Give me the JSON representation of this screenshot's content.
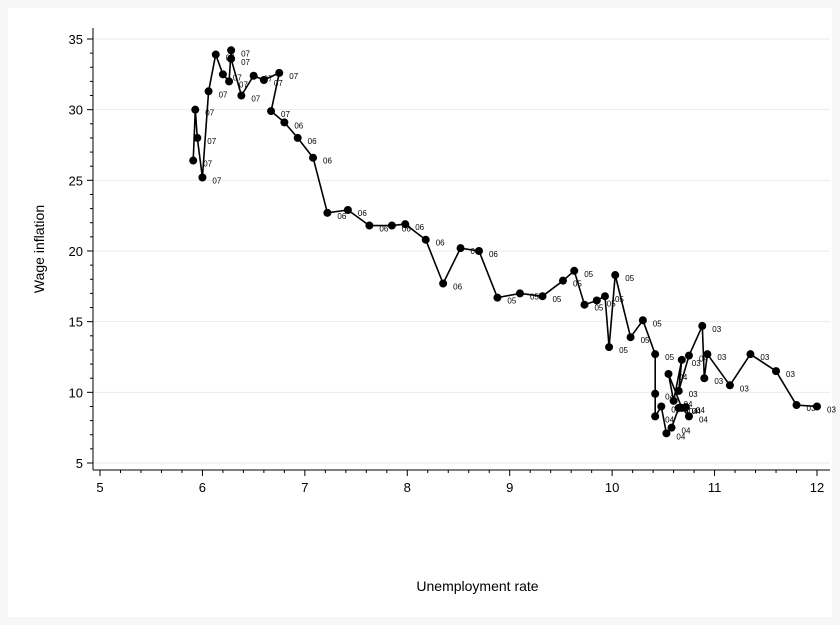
{
  "chart_data": {
    "type": "line",
    "xlabel": "Unemployment rate",
    "ylabel": "Wage inflation",
    "xlim": [
      5,
      12
    ],
    "ylim": [
      5,
      35
    ],
    "xticks": [
      5,
      6,
      7,
      8,
      9,
      10,
      11,
      12
    ],
    "yticks": [
      5,
      10,
      15,
      20,
      25,
      30,
      35
    ],
    "grid": true,
    "series": [
      {
        "color": "#000000",
        "marker": "circle",
        "points": [
          {
            "x": 12.0,
            "y": 9.0,
            "label": "03"
          },
          {
            "x": 11.8,
            "y": 9.1,
            "label": "03"
          },
          {
            "x": 11.6,
            "y": 11.5,
            "label": "03"
          },
          {
            "x": 11.35,
            "y": 12.7,
            "label": "03"
          },
          {
            "x": 11.15,
            "y": 10.5,
            "label": "03"
          },
          {
            "x": 10.93,
            "y": 12.7,
            "label": "03"
          },
          {
            "x": 10.9,
            "y": 11.0,
            "label": "03"
          },
          {
            "x": 10.88,
            "y": 14.7,
            "label": "03"
          },
          {
            "x": 10.75,
            "y": 12.6,
            "label": "04"
          },
          {
            "x": 10.65,
            "y": 10.1,
            "label": "03"
          },
          {
            "x": 10.68,
            "y": 12.3,
            "label": "03"
          },
          {
            "x": 10.6,
            "y": 9.4,
            "label": "04"
          },
          {
            "x": 10.55,
            "y": 11.3,
            "label": "04"
          },
          {
            "x": 10.68,
            "y": 8.9,
            "label": "04"
          },
          {
            "x": 10.75,
            "y": 8.3,
            "label": "04"
          },
          {
            "x": 10.72,
            "y": 8.95,
            "label": "04"
          },
          {
            "x": 10.65,
            "y": 8.9,
            "label": "04"
          },
          {
            "x": 10.58,
            "y": 7.5,
            "label": "04"
          },
          {
            "x": 10.53,
            "y": 7.1,
            "label": "04"
          },
          {
            "x": 10.48,
            "y": 9.0,
            "label": "04"
          },
          {
            "x": 10.42,
            "y": 8.3,
            "label": "04"
          },
          {
            "x": 10.42,
            "y": 9.9,
            "label": "04"
          },
          {
            "x": 10.42,
            "y": 12.7,
            "label": "05"
          },
          {
            "x": 10.3,
            "y": 15.1,
            "label": "05"
          },
          {
            "x": 10.18,
            "y": 13.9,
            "label": "05"
          },
          {
            "x": 10.03,
            "y": 18.3,
            "label": "05"
          },
          {
            "x": 9.97,
            "y": 13.2,
            "label": "05"
          },
          {
            "x": 9.93,
            "y": 16.8,
            "label": "05"
          },
          {
            "x": 9.85,
            "y": 16.5,
            "label": "05"
          },
          {
            "x": 9.73,
            "y": 16.2,
            "label": "05"
          },
          {
            "x": 9.63,
            "y": 18.6,
            "label": "05"
          },
          {
            "x": 9.52,
            "y": 17.9,
            "label": "05"
          },
          {
            "x": 9.32,
            "y": 16.8,
            "label": "05"
          },
          {
            "x": 9.1,
            "y": 17.0,
            "label": "05"
          },
          {
            "x": 8.88,
            "y": 16.7,
            "label": "05"
          },
          {
            "x": 8.7,
            "y": 20.0,
            "label": "06"
          },
          {
            "x": 8.52,
            "y": 20.2,
            "label": "06"
          },
          {
            "x": 8.35,
            "y": 17.7,
            "label": "06"
          },
          {
            "x": 8.18,
            "y": 20.8,
            "label": "06"
          },
          {
            "x": 7.98,
            "y": 21.9,
            "label": "06"
          },
          {
            "x": 7.85,
            "y": 21.8,
            "label": "06"
          },
          {
            "x": 7.63,
            "y": 21.8,
            "label": "06"
          },
          {
            "x": 7.42,
            "y": 22.9,
            "label": "06"
          },
          {
            "x": 7.22,
            "y": 22.7,
            "label": "06"
          },
          {
            "x": 7.08,
            "y": 26.6,
            "label": "06"
          },
          {
            "x": 6.93,
            "y": 28.0,
            "label": "06"
          },
          {
            "x": 6.8,
            "y": 29.1,
            "label": "06"
          },
          {
            "x": 6.67,
            "y": 29.9,
            "label": "07"
          },
          {
            "x": 6.75,
            "y": 32.6,
            "label": "07"
          },
          {
            "x": 6.6,
            "y": 32.1,
            "label": "07"
          },
          {
            "x": 6.5,
            "y": 32.4,
            "label": "07"
          },
          {
            "x": 6.38,
            "y": 31.0,
            "label": "07"
          },
          {
            "x": 6.28,
            "y": 33.6,
            "label": "07"
          },
          {
            "x": 6.28,
            "y": 34.2,
            "label": "07"
          },
          {
            "x": 6.26,
            "y": 32.0,
            "label": "07"
          },
          {
            "x": 6.2,
            "y": 32.5,
            "label": "07"
          },
          {
            "x": 6.13,
            "y": 33.9,
            "label": "07"
          },
          {
            "x": 6.06,
            "y": 31.3,
            "label": "07"
          },
          {
            "x": 6.0,
            "y": 25.2,
            "label": "07"
          },
          {
            "x": 5.95,
            "y": 28.0,
            "label": "07"
          },
          {
            "x": 5.93,
            "y": 30.0,
            "label": "07"
          },
          {
            "x": 5.91,
            "y": 26.4,
            "label": "07"
          }
        ]
      }
    ]
  }
}
